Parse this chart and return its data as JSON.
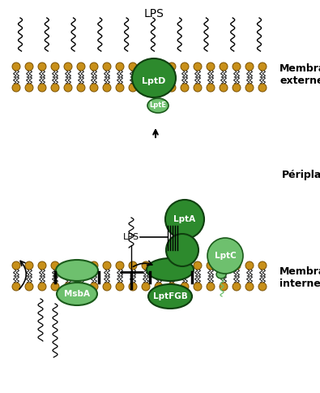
{
  "bg_color": "#ffffff",
  "dark_green": "#2d8a2d",
  "light_green": "#6ec06e",
  "membrane_gold": "#c8901a",
  "text_color": "#000000",
  "label_lps_top": "LPS",
  "label_membrane_ext": "Membrane\nexterne",
  "label_periplasme": "Périplasme",
  "label_membrane_int": "Membrane\ninterne",
  "label_lptD": "LptD",
  "label_lptE": "LptE",
  "label_lptA": "LptA",
  "label_lptC": "LptC",
  "label_lptFGB": "LptFGB",
  "label_msbA": "MsbA",
  "label_lps_mid": "LPS"
}
